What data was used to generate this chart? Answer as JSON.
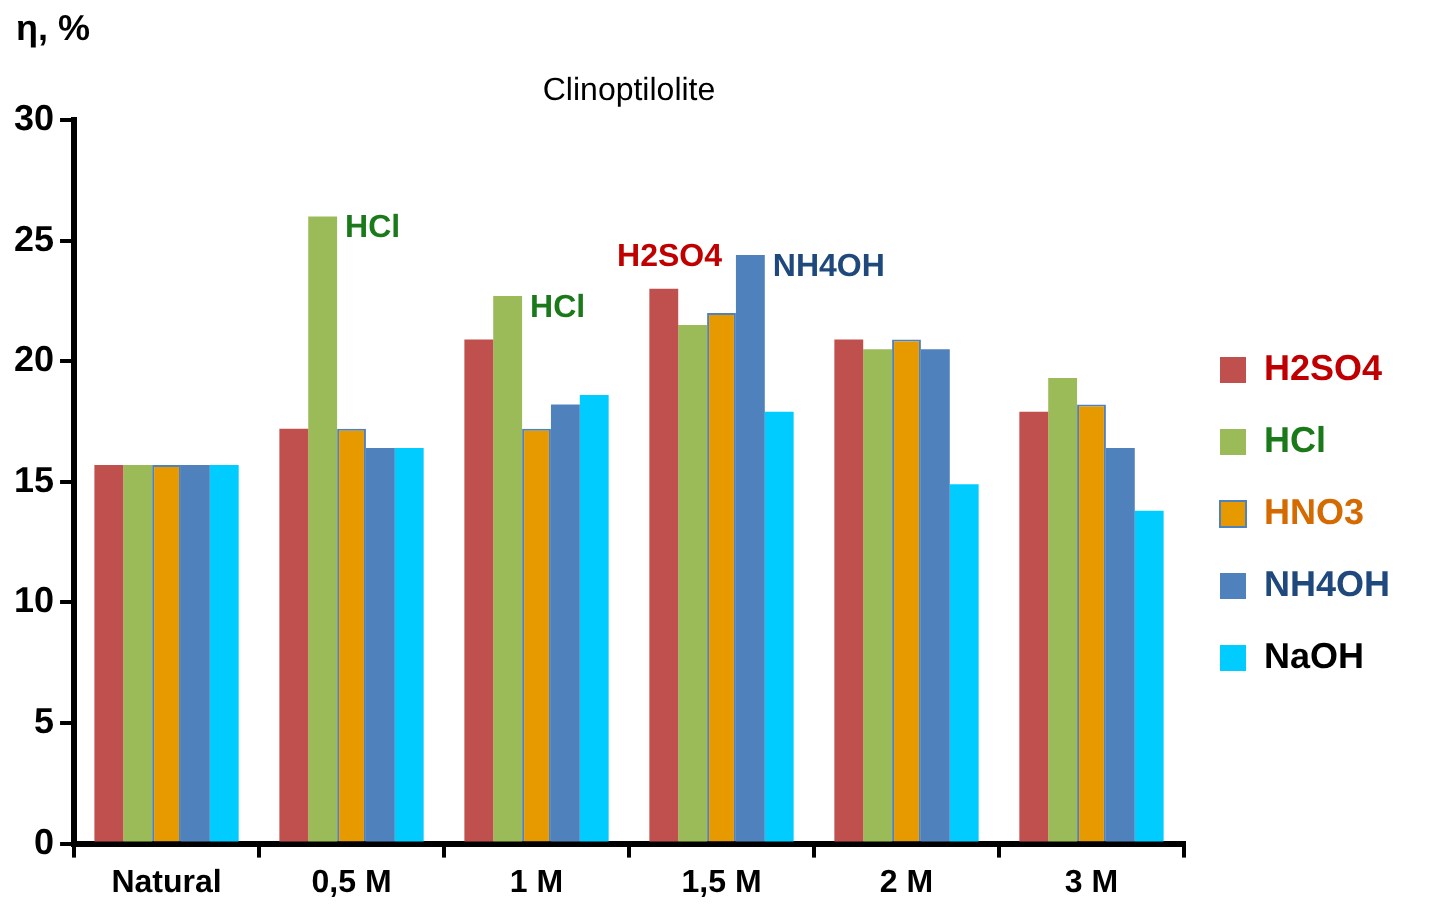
{
  "chart_data": {
    "type": "bar",
    "title": "Clinoptilolite",
    "ylabel": "η, %",
    "categories": [
      "Natural",
      "0,5 M",
      "1 M",
      "1,5 M",
      "2 M",
      "3 M"
    ],
    "series": [
      {
        "name": "H2SO4",
        "color": "#c0504d",
        "values": [
          15.7,
          17.2,
          20.9,
          23.0,
          20.9,
          17.9
        ]
      },
      {
        "name": "HCl",
        "color": "#9bbb59",
        "values": [
          15.7,
          26.0,
          22.7,
          21.5,
          20.5,
          19.3
        ]
      },
      {
        "name": "HNO3",
        "color": "#e69a00",
        "values": [
          15.7,
          17.2,
          17.2,
          22.0,
          20.9,
          18.2
        ]
      },
      {
        "name": "NH4OH",
        "color": "#4f81bd",
        "values": [
          15.7,
          16.4,
          18.2,
          24.4,
          20.5,
          16.4
        ]
      },
      {
        "name": "NaOH",
        "color": "#00ccff",
        "values": [
          15.7,
          16.4,
          18.6,
          17.9,
          14.9,
          13.8
        ]
      }
    ],
    "annotations": [
      "HCl",
      "HCl",
      "H2SO4",
      "NH4OH"
    ],
    "ylim": [
      0,
      30
    ],
    "yticks": [
      0,
      5,
      10,
      15,
      20,
      25,
      30
    ],
    "grid": false,
    "legend": "right"
  }
}
